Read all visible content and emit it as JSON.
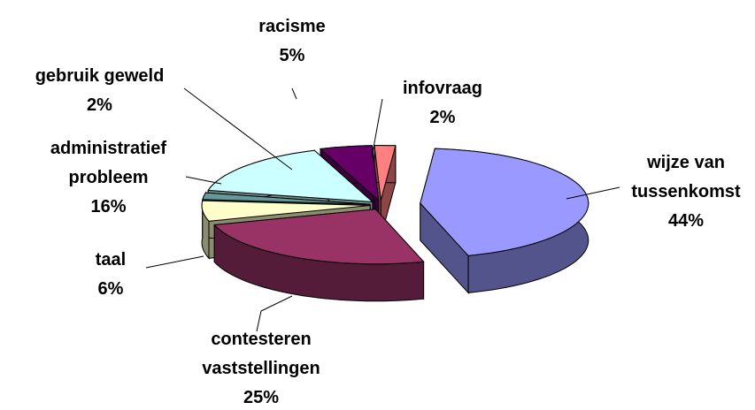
{
  "chart_data": {
    "type": "pie3d",
    "categories": [
      "wijze van tussenkomst",
      "contesteren vaststellingen",
      "taal",
      "gebruik geweld",
      "administratief probleem",
      "racisme",
      "infovraag"
    ],
    "values": [
      44,
      25,
      6,
      2,
      16,
      5,
      2
    ],
    "value_labels": [
      "44%",
      "25%",
      "6%",
      "2%",
      "16%",
      "5%",
      "2%"
    ],
    "colors": [
      "#9999ff",
      "#993366",
      "#ffffcc",
      "#669999",
      "#ccffff",
      "#660066",
      "#ff8080"
    ]
  }
}
